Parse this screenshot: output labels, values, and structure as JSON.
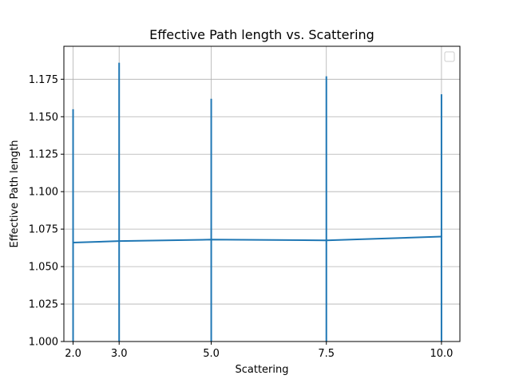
{
  "chart_data": {
    "type": "line",
    "title": "Effective Path length vs. Scattering",
    "xlabel": "Scattering",
    "ylabel": "Effective Path length",
    "x": [
      2.0,
      3.0,
      5.0,
      7.5,
      10.0
    ],
    "x_tick_labels": [
      "2.0",
      "3.0",
      "5.0",
      "7.5",
      "10.0"
    ],
    "y_ticks": [
      1.0,
      1.025,
      1.05,
      1.075,
      1.1,
      1.125,
      1.15,
      1.175
    ],
    "y_tick_labels": [
      "1.000",
      "1.025",
      "1.050",
      "1.075",
      "1.100",
      "1.125",
      "1.150",
      "1.175"
    ],
    "xlim": [
      1.8,
      10.4
    ],
    "ylim": [
      1.0,
      1.197
    ],
    "grid": true,
    "legend": {
      "placement": "top-right",
      "entries": []
    },
    "series": [
      {
        "values": [
          1.066,
          1.067,
          1.068,
          1.0675,
          1.07
        ],
        "error_low": [
          1.0,
          1.0,
          1.0,
          1.0,
          1.0
        ],
        "error_high": [
          1.155,
          1.186,
          1.162,
          1.177,
          1.165
        ],
        "color": "#1f77b4"
      }
    ]
  }
}
